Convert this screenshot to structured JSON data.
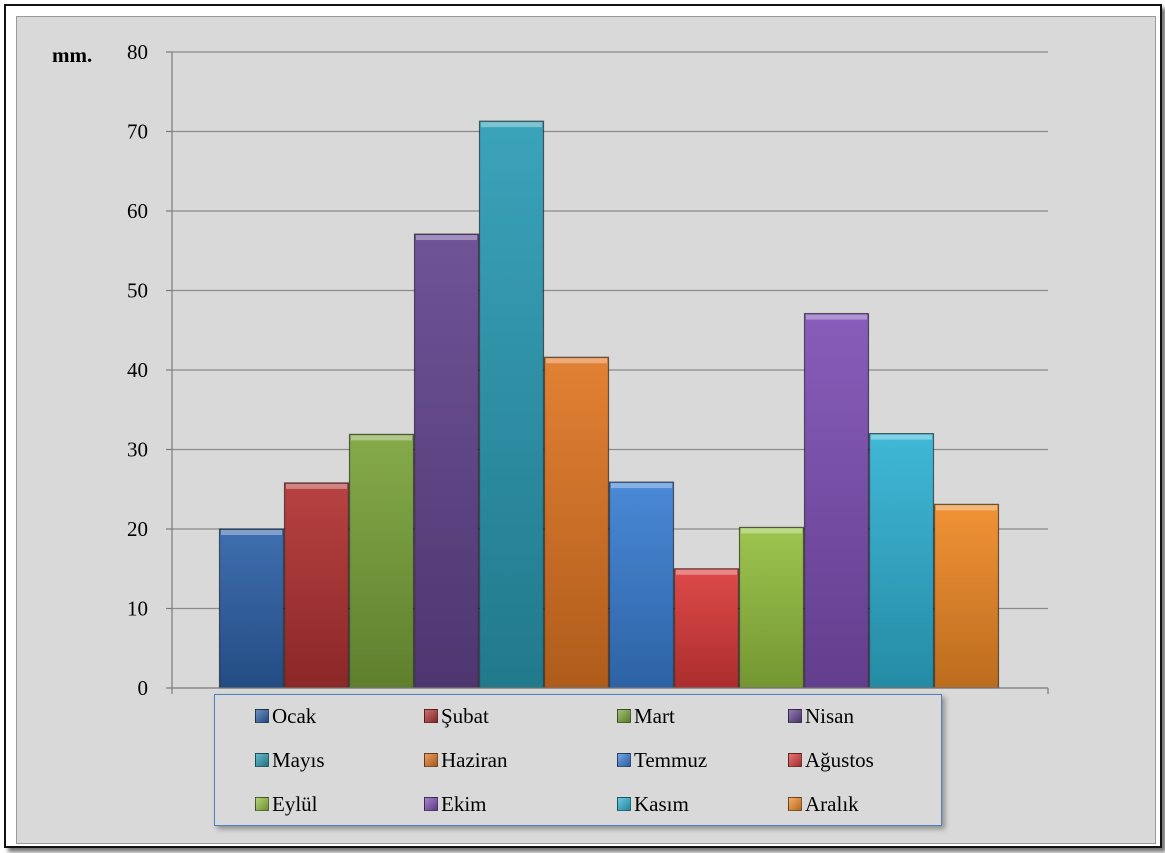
{
  "chart_data": {
    "type": "bar",
    "categories": [
      "Ocak",
      "Şubat",
      "Mart",
      "Nisan",
      "Mayıs",
      "Haziran",
      "Temmuz",
      "Ağustos",
      "Eylül",
      "Ekim",
      "Kasım",
      "Aralık"
    ],
    "values": [
      20,
      25.8,
      31.9,
      57.1,
      71.3,
      41.6,
      25.9,
      15,
      20.2,
      47.1,
      32,
      23.1
    ],
    "colors": [
      "#2e62a8",
      "#b23232",
      "#7aa33a",
      "#63458f",
      "#2a9bb4",
      "#e07622",
      "#3a7fd4",
      "#dc3a3a",
      "#95c040",
      "#7e4fb5",
      "#2fb2d4",
      "#f08a25"
    ],
    "ylabel": "mm.",
    "ylim": [
      0,
      80
    ],
    "yticks": [
      0,
      10,
      20,
      30,
      40,
      50,
      60,
      70,
      80
    ],
    "grid": true,
    "legend_position": "bottom"
  }
}
